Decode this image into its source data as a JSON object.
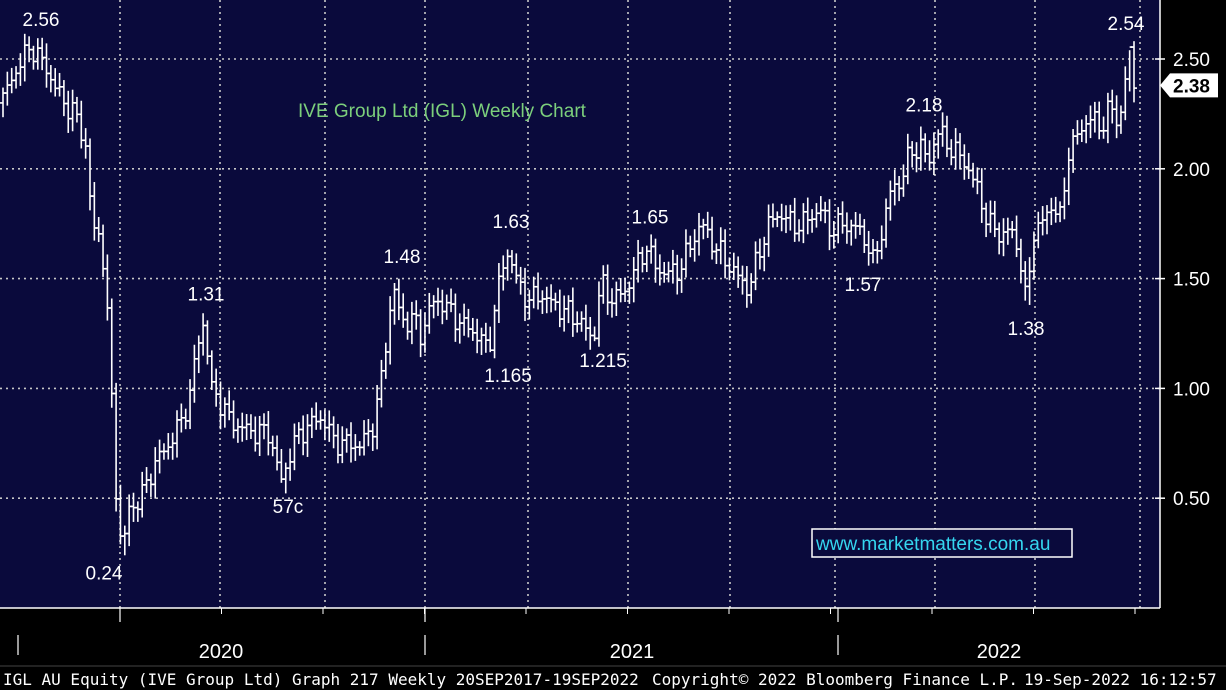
{
  "chart_data": {
    "type": "ohlc",
    "title": "IVE Group Ltd (IGL) Weekly Chart",
    "ylim": [
      0.0,
      2.72
    ],
    "y_ticks": [
      0.5,
      1.0,
      1.5,
      2.0,
      2.5
    ],
    "y_tick_labels": [
      "0.50",
      "1.00",
      "1.50",
      "2.00",
      "2.50"
    ],
    "x_axis_years": [
      "2020",
      "2021",
      "2022"
    ],
    "last_price": "2.38",
    "grid": true,
    "annotations": [
      {
        "text": "2.56",
        "week": 30,
        "price": 2.56
      },
      {
        "text": "0.24",
        "week": 121,
        "price": 0.24
      },
      {
        "text": "1.31",
        "week": 203,
        "price": 1.31
      },
      {
        "text": "57c",
        "week": 280,
        "price": 0.57
      },
      {
        "text": "1.48",
        "week": 392,
        "price": 1.48
      },
      {
        "text": "1.165",
        "week": 487,
        "price": 1.165
      },
      {
        "text": "1.63",
        "week": 508,
        "price": 1.63
      },
      {
        "text": "1.215",
        "week": 592,
        "price": 1.215
      },
      {
        "text": "1.65",
        "week": 645,
        "price": 1.65
      },
      {
        "text": "1.57",
        "week": 872,
        "price": 1.57
      },
      {
        "text": "2.18",
        "week": 935,
        "price": 2.18
      },
      {
        "text": "1.38",
        "week": 1025,
        "price": 1.38
      },
      {
        "text": "2.54",
        "week": 1128,
        "price": 2.54
      }
    ],
    "path": [
      [
        0,
        2.3
      ],
      [
        15,
        2.45
      ],
      [
        30,
        2.56
      ],
      [
        45,
        2.46
      ],
      [
        60,
        2.32
      ],
      [
        75,
        2.24
      ],
      [
        85,
        2.1
      ],
      [
        92,
        1.7
      ],
      [
        100,
        1.72
      ],
      [
        108,
        1.22
      ],
      [
        115,
        0.55
      ],
      [
        121,
        0.24
      ],
      [
        128,
        0.45
      ],
      [
        140,
        0.5
      ],
      [
        150,
        0.62
      ],
      [
        160,
        0.7
      ],
      [
        170,
        0.76
      ],
      [
        180,
        0.85
      ],
      [
        190,
        0.98
      ],
      [
        196,
        1.2
      ],
      [
        203,
        1.31
      ],
      [
        210,
        1.0
      ],
      [
        218,
        0.95
      ],
      [
        228,
        0.86
      ],
      [
        240,
        0.82
      ],
      [
        255,
        0.8
      ],
      [
        268,
        0.8
      ],
      [
        280,
        0.57
      ],
      [
        290,
        0.72
      ],
      [
        300,
        0.8
      ],
      [
        310,
        0.84
      ],
      [
        322,
        0.87
      ],
      [
        332,
        0.76
      ],
      [
        345,
        0.75
      ],
      [
        358,
        0.74
      ],
      [
        370,
        0.8
      ],
      [
        380,
        1.02
      ],
      [
        387,
        1.28
      ],
      [
        392,
        1.48
      ],
      [
        400,
        1.3
      ],
      [
        412,
        1.32
      ],
      [
        420,
        1.24
      ],
      [
        430,
        1.38
      ],
      [
        440,
        1.4
      ],
      [
        452,
        1.33
      ],
      [
        465,
        1.28
      ],
      [
        478,
        1.24
      ],
      [
        487,
        1.165
      ],
      [
        495,
        1.4
      ],
      [
        502,
        1.56
      ],
      [
        508,
        1.63
      ],
      [
        516,
        1.48
      ],
      [
        528,
        1.4
      ],
      [
        540,
        1.43
      ],
      [
        552,
        1.38
      ],
      [
        566,
        1.35
      ],
      [
        580,
        1.3
      ],
      [
        592,
        1.215
      ],
      [
        600,
        1.48
      ],
      [
        612,
        1.4
      ],
      [
        625,
        1.45
      ],
      [
        635,
        1.55
      ],
      [
        645,
        1.65
      ],
      [
        655,
        1.55
      ],
      [
        668,
        1.52
      ],
      [
        680,
        1.55
      ],
      [
        690,
        1.66
      ],
      [
        700,
        1.75
      ],
      [
        712,
        1.66
      ],
      [
        725,
        1.58
      ],
      [
        738,
        1.5
      ],
      [
        748,
        1.45
      ],
      [
        758,
        1.62
      ],
      [
        768,
        1.75
      ],
      [
        780,
        1.8
      ],
      [
        792,
        1.74
      ],
      [
        805,
        1.76
      ],
      [
        818,
        1.82
      ],
      [
        830,
        1.72
      ],
      [
        842,
        1.75
      ],
      [
        855,
        1.73
      ],
      [
        865,
        1.68
      ],
      [
        872,
        1.57
      ],
      [
        880,
        1.7
      ],
      [
        890,
        1.9
      ],
      [
        900,
        1.95
      ],
      [
        910,
        2.08
      ],
      [
        920,
        2.1
      ],
      [
        928,
        2.02
      ],
      [
        935,
        2.18
      ],
      [
        945,
        2.12
      ],
      [
        958,
        2.06
      ],
      [
        968,
        2.0
      ],
      [
        978,
        1.88
      ],
      [
        988,
        1.75
      ],
      [
        998,
        1.7
      ],
      [
        1008,
        1.72
      ],
      [
        1018,
        1.64
      ],
      [
        1025,
        1.38
      ],
      [
        1033,
        1.72
      ],
      [
        1043,
        1.76
      ],
      [
        1052,
        1.85
      ],
      [
        1060,
        1.76
      ],
      [
        1068,
        2.1
      ],
      [
        1078,
        2.15
      ],
      [
        1088,
        2.25
      ],
      [
        1098,
        2.18
      ],
      [
        1108,
        2.28
      ],
      [
        1118,
        2.2
      ],
      [
        1128,
        2.54
      ],
      [
        1132,
        2.38
      ]
    ]
  },
  "watermark": "www.marketmatters.com.au",
  "footer": {
    "left": "IGL AU Equity (IVE Group Ltd) Graph 217  Weekly 20SEP2017-19SEP2022",
    "copyright": "Copyright© 2022 Bloomberg Finance L.P.",
    "timestamp": "19-Sep-2022 16:12:57"
  },
  "colors": {
    "background": "#000000",
    "plot_bg": "#0a0a3c",
    "grid": "#c8c8c8",
    "bars": "#ffffff",
    "title": "#7ccf7c",
    "watermark": "#35d6ef"
  }
}
